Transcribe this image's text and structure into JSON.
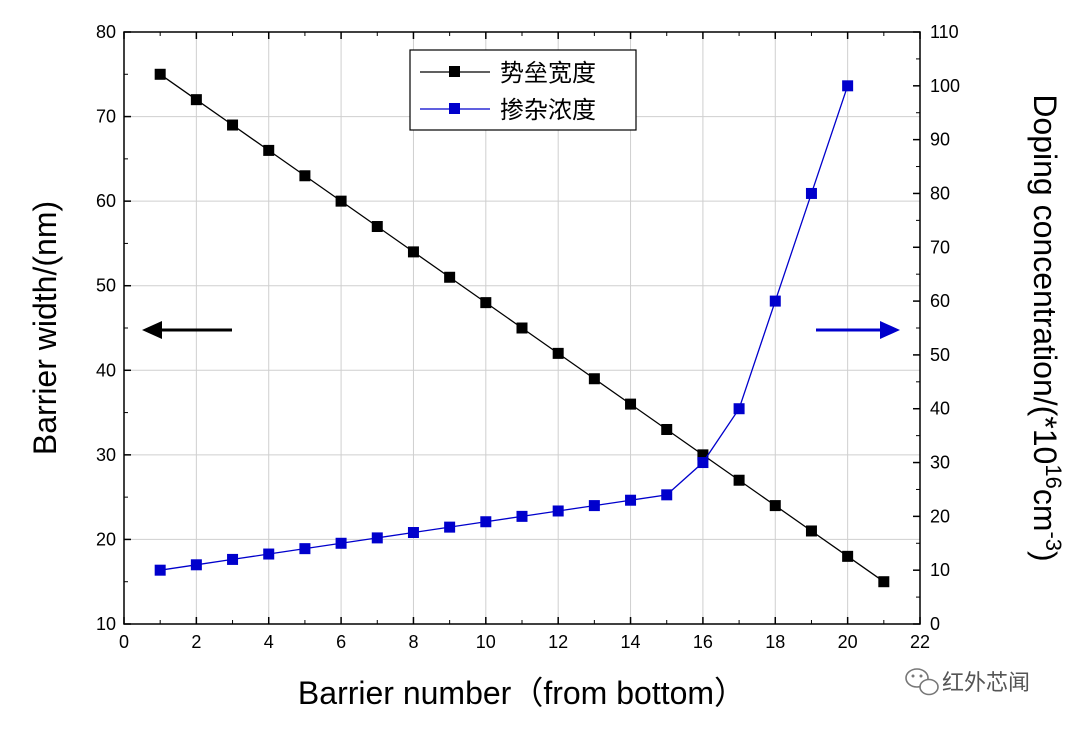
{
  "chart_data": {
    "type": "line",
    "x": [
      1,
      2,
      3,
      4,
      5,
      6,
      7,
      8,
      9,
      10,
      11,
      12,
      13,
      14,
      15,
      16,
      17,
      18,
      19,
      20,
      21
    ],
    "xlim": [
      0,
      22
    ],
    "xticks": [
      0,
      2,
      4,
      6,
      8,
      10,
      12,
      14,
      16,
      18,
      20,
      22
    ],
    "left_ylim": [
      10,
      80
    ],
    "left_yticks": [
      10,
      20,
      30,
      40,
      50,
      60,
      70,
      80
    ],
    "right_ylim": [
      0,
      110
    ],
    "right_yticks": [
      0,
      10,
      20,
      30,
      40,
      50,
      60,
      70,
      80,
      90,
      100,
      110
    ],
    "xlabel": "Barrier number（from bottom）",
    "ylabel_left": "Barrier width/(nm)",
    "ylabel_right_prefix": "Doping concentration/(*10",
    "ylabel_right_sup1": "16",
    "ylabel_right_mid": "cm",
    "ylabel_right_sup2": "-3",
    "ylabel_right_suffix": ")",
    "grid": true,
    "legend_position": "top-center",
    "series": [
      {
        "name": "势垒宽度",
        "axis": "left",
        "color": "#000000",
        "x": [
          1,
          2,
          3,
          4,
          5,
          6,
          7,
          8,
          9,
          10,
          11,
          12,
          13,
          14,
          15,
          16,
          17,
          18,
          19,
          20,
          21
        ],
        "values": [
          75,
          72,
          69,
          66,
          63,
          60,
          57,
          54,
          51,
          48,
          45,
          42,
          39,
          36,
          33,
          30,
          27,
          24,
          21,
          18,
          15
        ]
      },
      {
        "name": "掺杂浓度",
        "axis": "right",
        "color": "#0000cc",
        "x": [
          1,
          2,
          3,
          4,
          5,
          6,
          7,
          8,
          9,
          10,
          11,
          12,
          13,
          14,
          15,
          16,
          17,
          18,
          19,
          20
        ],
        "values": [
          10,
          11,
          12,
          13,
          14,
          15,
          16,
          17,
          18,
          19,
          20,
          21,
          22,
          23,
          24,
          30,
          40,
          60,
          80,
          100
        ]
      }
    ]
  },
  "watermark": {
    "text": "红外芯闻",
    "icon": "wechat-icon"
  }
}
